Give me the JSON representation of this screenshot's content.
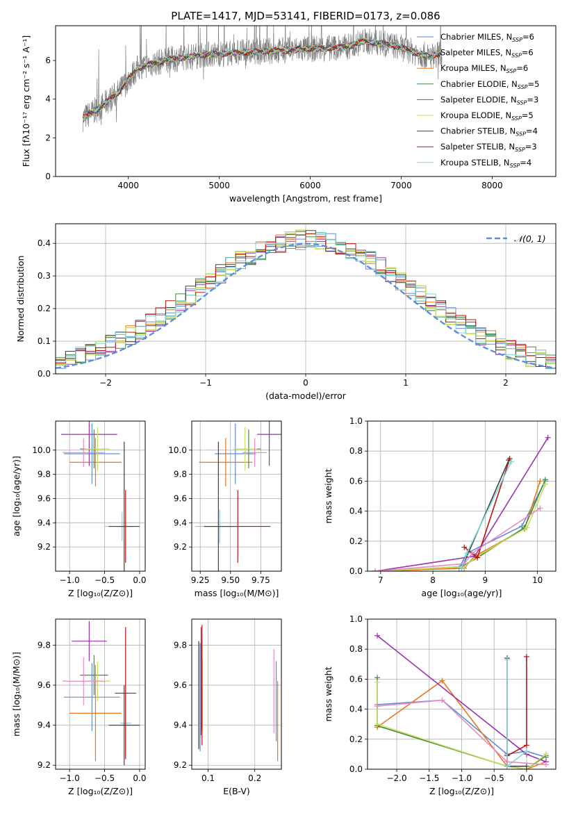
{
  "figure": {
    "title": "PLATE=1417, MJD=53141, FIBERID=0173, z=0.086"
  },
  "legend_entries": [
    {
      "label": "Chabrier MILES, N",
      "sub": "SSP",
      "eq": "=6",
      "color": "#5b8fd9"
    },
    {
      "label": "Salpeter MILES, N",
      "sub": "SSP",
      "eq": "=6",
      "color": "#5fb3b3"
    },
    {
      "label": "Kroupa MILES, N",
      "sub": "SSP",
      "eq": "=6",
      "color": "#e8761e"
    },
    {
      "label": "Chabrier ELODIE, N",
      "sub": "SSP",
      "eq": "=5",
      "color": "#3c8c3c"
    },
    {
      "label": "Salpeter ELODIE, N",
      "sub": "SSP",
      "eq": "=3",
      "color": "#9b30b0"
    },
    {
      "label": "Kroupa ELODIE, N",
      "sub": "SSP",
      "eq": "=5",
      "color": "#c7e05a"
    },
    {
      "label": "Chabrier STELIB, N",
      "sub": "SSP",
      "eq": "=4",
      "color": "#404040"
    },
    {
      "label": "Salpeter STELIB, N",
      "sub": "SSP",
      "eq": "=3",
      "color": "#c01010"
    },
    {
      "label": "Kroupa STELIB, N",
      "sub": "SSP",
      "eq": "=4",
      "color": "#7fd3d8"
    }
  ],
  "chart_data": [
    {
      "id": "spectrum",
      "type": "line",
      "xlabel": "wavelength [Angstrom, rest frame]",
      "ylabel": "Flux [fλ10⁻¹⁷ erg cm⁻² s⁻¹ A⁻¹]",
      "xlim": [
        3200,
        8700
      ],
      "ylim": [
        0,
        7.8
      ],
      "xticks": [
        4000,
        5000,
        6000,
        7000,
        8000
      ],
      "yticks": [
        0,
        2,
        4,
        6
      ],
      "data_span": [
        3500,
        7450
      ],
      "data_color": "#808080",
      "model_knots": {
        "x": [
          3500,
          3700,
          3900,
          4100,
          4400,
          4800,
          5200,
          5600,
          6000,
          6400,
          6600,
          6900,
          7300,
          7450
        ],
        "y": [
          3.0,
          3.6,
          4.4,
          5.6,
          6.0,
          6.3,
          6.4,
          6.5,
          6.6,
          6.7,
          7.0,
          6.8,
          6.2,
          6.4
        ]
      },
      "model_color": "#7fd3d8"
    },
    {
      "id": "residuals",
      "type": "area",
      "xlabel": "(data-model)/error",
      "ylabel": "Normed distribution",
      "xlim": [
        -2.5,
        2.5
      ],
      "ylim": [
        0,
        0.46
      ],
      "xticks": [
        -2,
        -1,
        0,
        1,
        2
      ],
      "yticks": [
        0.0,
        0.1,
        0.2,
        0.3,
        0.4
      ],
      "grid": true,
      "legend": {
        "label": "𝒩(0, 1)",
        "position": "top-right"
      },
      "gaussian": {
        "mu": 0,
        "sigma": 1,
        "color": "#5b8fd9"
      },
      "bin_width": 0.1
    },
    {
      "id": "age_vs_Z",
      "type": "scatter",
      "xlabel": "Z [log₁₀(Z/Z⊙)]",
      "ylabel": "age  [log₁₀(age/yr)]",
      "xlim": [
        -1.2,
        0.08
      ],
      "ylim": [
        9.0,
        10.24
      ],
      "xticks": [
        -1.0,
        -0.5,
        0.0
      ],
      "yticks": [
        9.2,
        9.4,
        9.6,
        9.8,
        10.0
      ],
      "points": [
        {
          "x": -0.68,
          "y": 9.97,
          "xerr": 0.4,
          "yerr": 0.25,
          "color": "#5b8fd9"
        },
        {
          "x": -0.25,
          "y": 9.37,
          "xerr": 0.25,
          "yerr": 0.12,
          "color": "#7fd3d8"
        },
        {
          "x": -0.63,
          "y": 9.9,
          "xerr": 0.37,
          "yerr": 0.2,
          "color": "#e8761e"
        },
        {
          "x": -0.65,
          "y": 10.01,
          "xerr": 0.2,
          "yerr": 0.16,
          "color": "#3c8c3c"
        },
        {
          "x": -0.72,
          "y": 10.13,
          "xerr": 0.4,
          "yerr": 0.26,
          "color": "#9b30b0"
        },
        {
          "x": -0.6,
          "y": 10.01,
          "xerr": 0.18,
          "yerr": 0.18,
          "color": "#c7e05a"
        },
        {
          "x": -0.22,
          "y": 9.37,
          "xerr": 0.22,
          "yerr": 0.7,
          "color": "#404040"
        },
        {
          "x": -0.2,
          "y": 9.37,
          "xerr": 0.1,
          "yerr": 0.3,
          "color": "#c01010"
        },
        {
          "x": -0.8,
          "y": 9.98,
          "xerr": 0.3,
          "yerr": 0.12,
          "color": "#e78ac3"
        }
      ]
    },
    {
      "id": "age_vs_mass",
      "type": "scatter",
      "xlabel": "mass [log₁₀(M/M⊙)]",
      "ylabel": "",
      "xlim": [
        9.18,
        9.92
      ],
      "ylim": [
        9.0,
        10.24
      ],
      "xticks": [
        9.25,
        9.5,
        9.75
      ],
      "yticks": [
        9.2,
        9.4,
        9.6,
        9.8,
        10.0
      ],
      "points": [
        {
          "x": 9.54,
          "y": 9.97,
          "xerr": 0.17,
          "yerr": 0.25,
          "color": "#5b8fd9"
        },
        {
          "x": 9.41,
          "y": 9.37,
          "xerr": 0.2,
          "yerr": 0.14,
          "color": "#7fd3d8"
        },
        {
          "x": 9.46,
          "y": 9.9,
          "xerr": 0.22,
          "yerr": 0.2,
          "color": "#e8761e"
        },
        {
          "x": 9.65,
          "y": 10.01,
          "xerr": 0.1,
          "yerr": 0.16,
          "color": "#3c8c3c"
        },
        {
          "x": 9.82,
          "y": 10.13,
          "xerr": 0.1,
          "yerr": 0.26,
          "color": "#9b30b0"
        },
        {
          "x": 9.62,
          "y": 10.01,
          "xerr": 0.1,
          "yerr": 0.18,
          "color": "#c7e05a"
        },
        {
          "x": 9.4,
          "y": 9.37,
          "xerr": 0.12,
          "yerr": 0.7,
          "color": "#404040"
        },
        {
          "x": 9.56,
          "y": 9.37,
          "xerr": 0.27,
          "yerr": 0.3,
          "color": "#c01010"
        },
        {
          "x": 9.7,
          "y": 9.98,
          "xerr": 0.1,
          "yerr": 0.12,
          "color": "#e78ac3"
        }
      ]
    },
    {
      "id": "weight_vs_age",
      "type": "line",
      "xlabel": "age  [log₁₀(age/yr)]",
      "ylabel": "mass weight",
      "xlim": [
        6.75,
        10.35
      ],
      "ylim": [
        0,
        1.0
      ],
      "xticks": [
        7,
        8,
        9,
        10
      ],
      "yticks": [
        0.0,
        0.2,
        0.4,
        0.6,
        0.8,
        1.0
      ],
      "series": [
        {
          "color": "#5b8fd9",
          "x": [
            6.9,
            8.5,
            8.65,
            9.7,
            10.15
          ],
          "y": [
            0.0,
            0.02,
            0.12,
            0.3,
            0.6
          ]
        },
        {
          "color": "#e8761e",
          "x": [
            6.9,
            8.6,
            8.8,
            9.75,
            10.05
          ],
          "y": [
            0.0,
            0.02,
            0.1,
            0.28,
            0.6
          ]
        },
        {
          "color": "#3c8c3c",
          "x": [
            6.9,
            8.55,
            8.85,
            9.75,
            10.15
          ],
          "y": [
            0.0,
            0.03,
            0.09,
            0.29,
            0.61
          ]
        },
        {
          "color": "#9b30b0",
          "x": [
            6.9,
            8.8,
            10.2
          ],
          "y": [
            0.0,
            0.1,
            0.89
          ]
        },
        {
          "color": "#c7e05a",
          "x": [
            6.9,
            8.6,
            8.85,
            9.8,
            10.15
          ],
          "y": [
            0.0,
            0.03,
            0.1,
            0.29,
            0.58
          ]
        },
        {
          "color": "#404040",
          "x": [
            8.55,
            9.45
          ],
          "y": [
            0.02,
            0.74
          ]
        },
        {
          "color": "#c01010",
          "x": [
            8.6,
            8.85,
            9.47
          ],
          "y": [
            0.16,
            0.09,
            0.75
          ]
        },
        {
          "color": "#7fd3d8",
          "x": [
            8.55,
            8.65,
            9.5
          ],
          "y": [
            0.02,
            0.12,
            0.73
          ]
        },
        {
          "color": "#e78ac3",
          "x": [
            6.9,
            8.6,
            8.75,
            10.05
          ],
          "y": [
            0.0,
            0.05,
            0.12,
            0.42
          ]
        }
      ]
    },
    {
      "id": "mass_vs_Z",
      "type": "scatter",
      "xlabel": "Z [log₁₀(Z/Z⊙)]",
      "ylabel": "mass [log₁₀(M/M⊙)]",
      "xlim": [
        -1.2,
        0.08
      ],
      "ylim": [
        9.18,
        9.93
      ],
      "xticks": [
        -1.0,
        -0.5,
        0.0
      ],
      "yticks": [
        9.2,
        9.4,
        9.6,
        9.8
      ],
      "points": [
        {
          "x": -0.68,
          "y": 9.54,
          "xerr": 0.4,
          "yerr": 0.17,
          "color": "#5b8fd9"
        },
        {
          "x": -0.2,
          "y": 9.41,
          "xerr": 0.08,
          "yerr": 0.15,
          "color": "#7fd3d8"
        },
        {
          "x": -0.63,
          "y": 9.46,
          "xerr": 0.37,
          "yerr": 0.24,
          "color": "#e8761e"
        },
        {
          "x": -0.65,
          "y": 9.65,
          "xerr": 0.2,
          "yerr": 0.1,
          "color": "#3c8c3c"
        },
        {
          "x": -0.72,
          "y": 9.82,
          "xerr": 0.25,
          "yerr": 0.1,
          "color": "#9b30b0"
        },
        {
          "x": -0.6,
          "y": 9.62,
          "xerr": 0.18,
          "yerr": 0.1,
          "color": "#c7e05a"
        },
        {
          "x": -0.22,
          "y": 9.4,
          "xerr": 0.22,
          "yerr": 0.2,
          "color": "#404040"
        },
        {
          "x": -0.2,
          "y": 9.56,
          "xerr": 0.15,
          "yerr": 0.33,
          "color": "#c01010"
        },
        {
          "x": -0.8,
          "y": 9.62,
          "xerr": 0.3,
          "yerr": 0.12,
          "color": "#e78ac3"
        }
      ]
    },
    {
      "id": "mass_vs_EBV",
      "type": "scatter",
      "xlabel": "E(B-V)",
      "ylabel": "",
      "xlim": [
        0.065,
        0.257
      ],
      "ylim": [
        9.18,
        9.93
      ],
      "xticks": [
        0.1,
        0.2
      ],
      "yticks": [
        9.2,
        9.4,
        9.6,
        9.8
      ],
      "points": [
        {
          "x": 0.083,
          "y": 9.54,
          "xerr": 0,
          "yerr": 0.27,
          "color": "#5b8fd9"
        },
        {
          "x": 0.082,
          "y": 9.54,
          "xerr": 0,
          "yerr": 0.25,
          "color": "#7fd3d8"
        },
        {
          "x": 0.249,
          "y": 9.42,
          "xerr": 0,
          "yerr": 0.2,
          "color": "#e8761e"
        },
        {
          "x": 0.086,
          "y": 9.6,
          "xerr": 0,
          "yerr": 0.22,
          "color": "#3c8c3c"
        },
        {
          "x": 0.085,
          "y": 9.62,
          "xerr": 0,
          "yerr": 0.27,
          "color": "#9b30b0"
        },
        {
          "x": 0.088,
          "y": 9.55,
          "xerr": 0,
          "yerr": 0.18,
          "color": "#c7e05a"
        },
        {
          "x": 0.08,
          "y": 9.55,
          "xerr": 0,
          "yerr": 0.27,
          "color": "#404040"
        },
        {
          "x": 0.087,
          "y": 9.6,
          "xerr": 0,
          "yerr": 0.3,
          "color": "#c01010"
        },
        {
          "x": 0.241,
          "y": 9.57,
          "xerr": 0,
          "yerr": 0.21,
          "color": "#e78ac3"
        },
        {
          "x": 0.246,
          "y": 9.52,
          "xerr": 0,
          "yerr": 0.2,
          "color": "#5b8fd9"
        }
      ]
    },
    {
      "id": "weight_vs_Z",
      "type": "line",
      "xlabel": "Z [log₁₀(Z/Z⊙)]",
      "ylabel": "mass weight",
      "xlim": [
        -2.45,
        0.45
      ],
      "ylim": [
        0,
        1.0
      ],
      "xticks": [
        -2.0,
        -1.5,
        -1.0,
        -0.5,
        0.0
      ],
      "yticks": [
        0.0,
        0.2,
        0.4,
        0.6,
        0.8,
        1.0
      ],
      "series": [
        {
          "color": "#5b8fd9",
          "x": [
            -2.3,
            -1.3,
            -0.3,
            0.0,
            0.3
          ],
          "y": [
            0.43,
            0.46,
            0.1,
            0.12,
            0.08
          ]
        },
        {
          "color": "#e8761e",
          "x": [
            -2.3,
            -1.3,
            -0.3,
            0.0,
            0.3
          ],
          "y": [
            0.28,
            0.59,
            0.02,
            0.0,
            0.05
          ]
        },
        {
          "color": "#3c8c3c",
          "x": [
            -2.3,
            -2.3,
            -0.3,
            0.0,
            0.3
          ],
          "y": [
            0.61,
            0.29,
            0.02,
            0.0,
            0.09
          ]
        },
        {
          "color": "#9b30b0",
          "x": [
            -2.3,
            0.0,
            0.3
          ],
          "y": [
            0.89,
            0.1,
            0.05
          ]
        },
        {
          "color": "#c7e05a",
          "x": [
            -2.3,
            -2.3,
            -0.3,
            0.0,
            0.3
          ],
          "y": [
            0.58,
            0.3,
            0.02,
            0.0,
            0.1
          ]
        },
        {
          "color": "#404040",
          "x": [
            -0.3,
            -0.3,
            0.0
          ],
          "y": [
            0.74,
            0.02,
            0.02
          ]
        },
        {
          "color": "#c01010",
          "x": [
            -0.3,
            0.0,
            0.0
          ],
          "y": [
            0.09,
            0.16,
            0.75
          ]
        },
        {
          "color": "#7fd3d8",
          "x": [
            -0.3,
            -0.3,
            0.0
          ],
          "y": [
            0.73,
            0.02,
            0.12
          ]
        },
        {
          "color": "#e78ac3",
          "x": [
            -2.3,
            -1.3,
            -0.3,
            0.3
          ],
          "y": [
            0.42,
            0.46,
            0.05,
            0.03
          ]
        }
      ]
    }
  ]
}
